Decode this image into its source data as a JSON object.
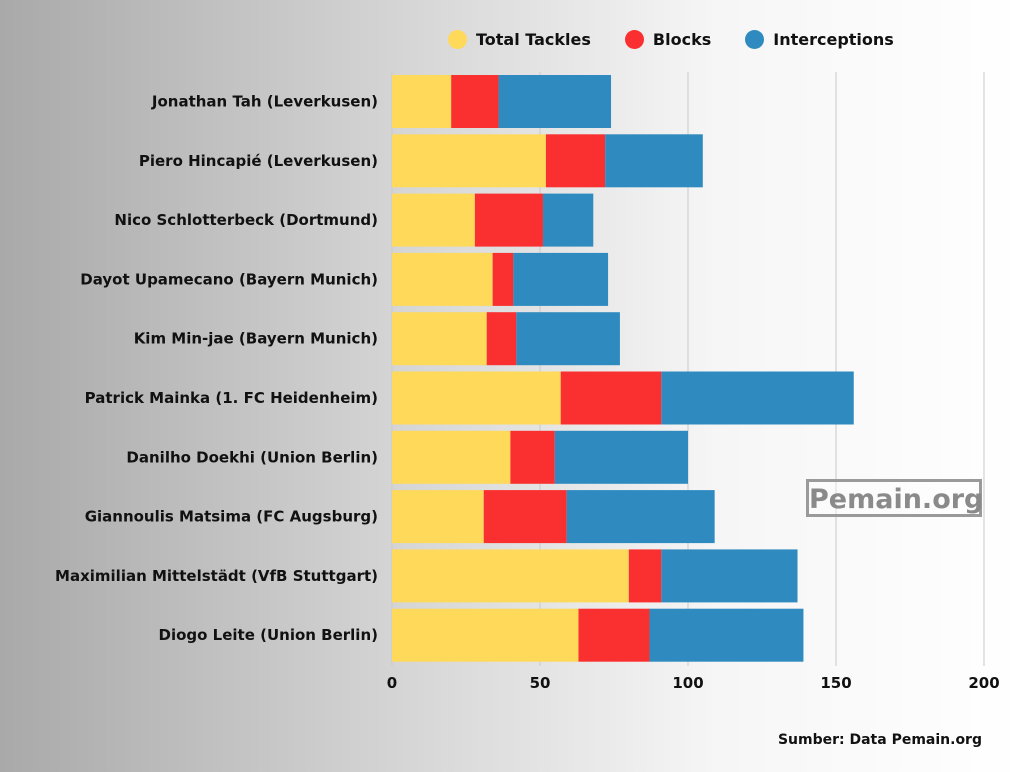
{
  "legend": {
    "items": [
      {
        "label": "Total Tackles",
        "color": "#FFD95A"
      },
      {
        "label": "Blocks",
        "color": "#F9302F"
      },
      {
        "label": "Interceptions",
        "color": "#2F8BBF"
      }
    ]
  },
  "source": "Sumber: Data Pemain.org",
  "watermark": "Pemain.org",
  "chart_data": {
    "type": "bar",
    "orientation": "horizontal",
    "stacked": true,
    "categories": [
      "Jonathan Tah (Leverkusen)",
      "Piero Hincapié (Leverkusen)",
      "Nico Schlotterbeck (Dortmund)",
      "Dayot Upamecano (Bayern Munich)",
      "Kim Min-jae (Bayern Munich)",
      "Patrick Mainka (1. FC Heidenheim)",
      "Danilho Doekhi (Union Berlin)",
      "Giannoulis Matsima (FC Augsburg)",
      "Maximilian Mittelstädt (VfB Stuttgart)",
      "Diogo Leite (Union Berlin)"
    ],
    "series": [
      {
        "name": "Total Tackles",
        "color": "#FFD95A",
        "values": [
          20,
          52,
          28,
          34,
          32,
          57,
          40,
          31,
          80,
          63
        ]
      },
      {
        "name": "Blocks",
        "color": "#F9302F",
        "values": [
          16,
          20,
          23,
          7,
          10,
          34,
          15,
          28,
          11,
          24
        ]
      },
      {
        "name": "Interceptions",
        "color": "#2F8BBF",
        "values": [
          38,
          33,
          17,
          32,
          35,
          65,
          45,
          50,
          46,
          52
        ]
      }
    ],
    "xlim": [
      0,
      200
    ],
    "xticks": [
      0,
      50,
      100,
      150,
      200
    ],
    "grid": "vertical",
    "legend_position": "top"
  }
}
